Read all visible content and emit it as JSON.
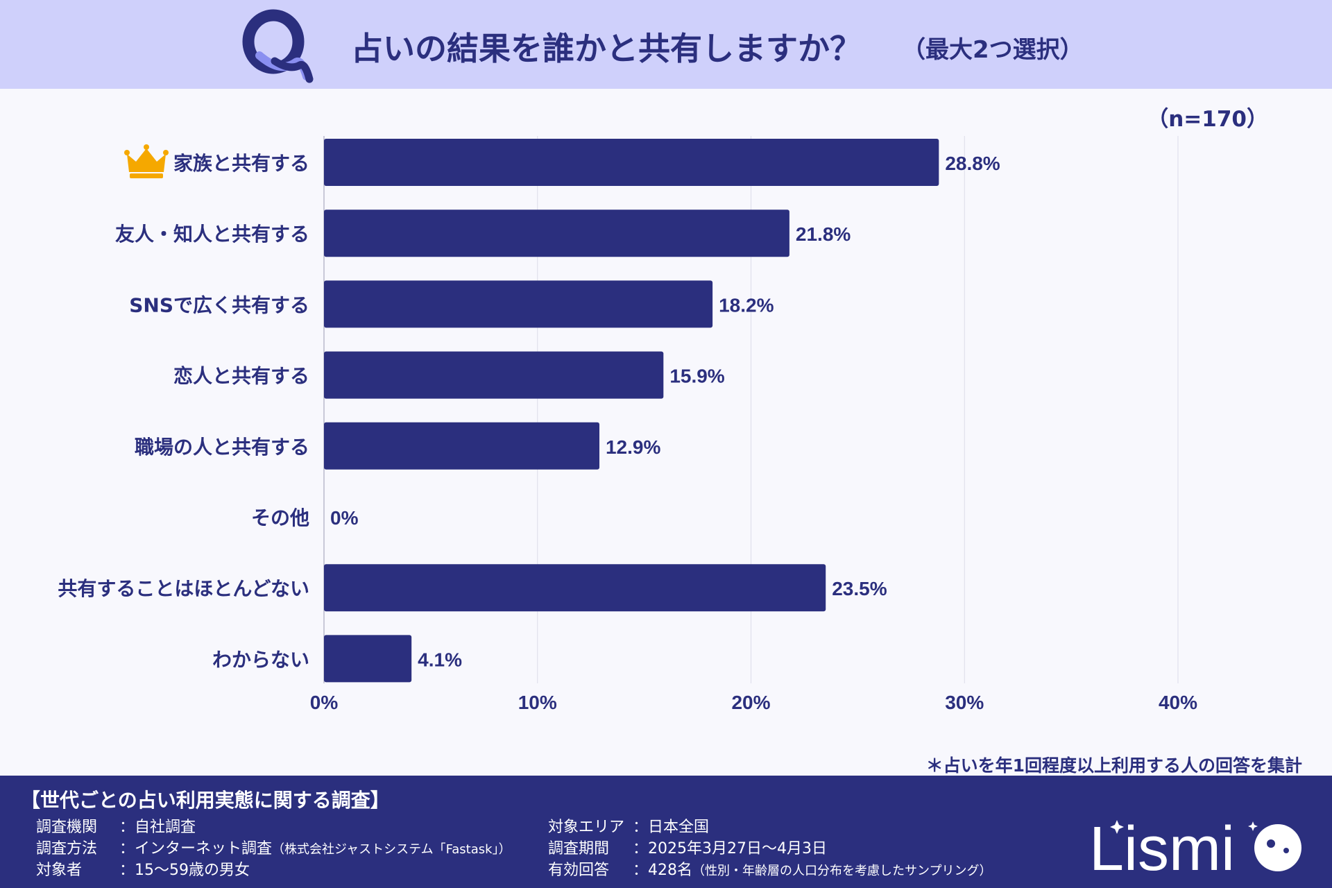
{
  "header": {
    "question": "占いの結果を誰かと共有しますか？",
    "subtitle": "（最大2つ選択）"
  },
  "sample_size": "（n=170）",
  "chart_data": {
    "type": "bar",
    "orientation": "horizontal",
    "categories": [
      "家族と共有する",
      "友人・知人と共有する",
      "SNSで広く共有する",
      "恋人と共有する",
      "職場の人と共有する",
      "その他",
      "共有することはほとんどない",
      "わからない"
    ],
    "values": [
      28.8,
      21.8,
      18.2,
      15.9,
      12.9,
      0,
      23.5,
      4.1
    ],
    "value_labels": [
      "28.8%",
      "21.8%",
      "18.2%",
      "15.9%",
      "12.9%",
      "0%",
      "23.5%",
      "4.1%"
    ],
    "xticks": [
      "0%",
      "10%",
      "20%",
      "30%",
      "40%"
    ],
    "xlim": [
      0,
      40
    ],
    "grid": true,
    "bar_color": "#2b2f7e",
    "highlight_icon": "crown-icon",
    "highlight_index": 0
  },
  "note": "＊占いを年1回程度以上利用する人の回答を集計",
  "footer": {
    "title": "【世代ごとの占い利用実態に関する調査】",
    "left": [
      {
        "key": "調査機関",
        "value": "：自社調査",
        "small": ""
      },
      {
        "key": "調査方法",
        "value": "：インターネット調査",
        "small": "（株式会社ジャストシステム「Fastask」）"
      },
      {
        "key": "対象者",
        "value": "：15〜59歳の男女",
        "small": ""
      }
    ],
    "right": [
      {
        "key": "対象エリア",
        "value": "：日本全国",
        "small": ""
      },
      {
        "key": "調査期間",
        "value": "：2025年3月27日〜4月3日",
        "small": ""
      },
      {
        "key": "有効回答",
        "value": "：428名",
        "small": "（性別・年齢層の人口分布を考慮したサンプリング）"
      }
    ],
    "logo_text": "Lismi"
  },
  "colors": {
    "header_bg": "#cfd0fb",
    "footer_bg": "#2b2f7e",
    "text": "#2b2f7e",
    "crown": "#f5a800"
  }
}
